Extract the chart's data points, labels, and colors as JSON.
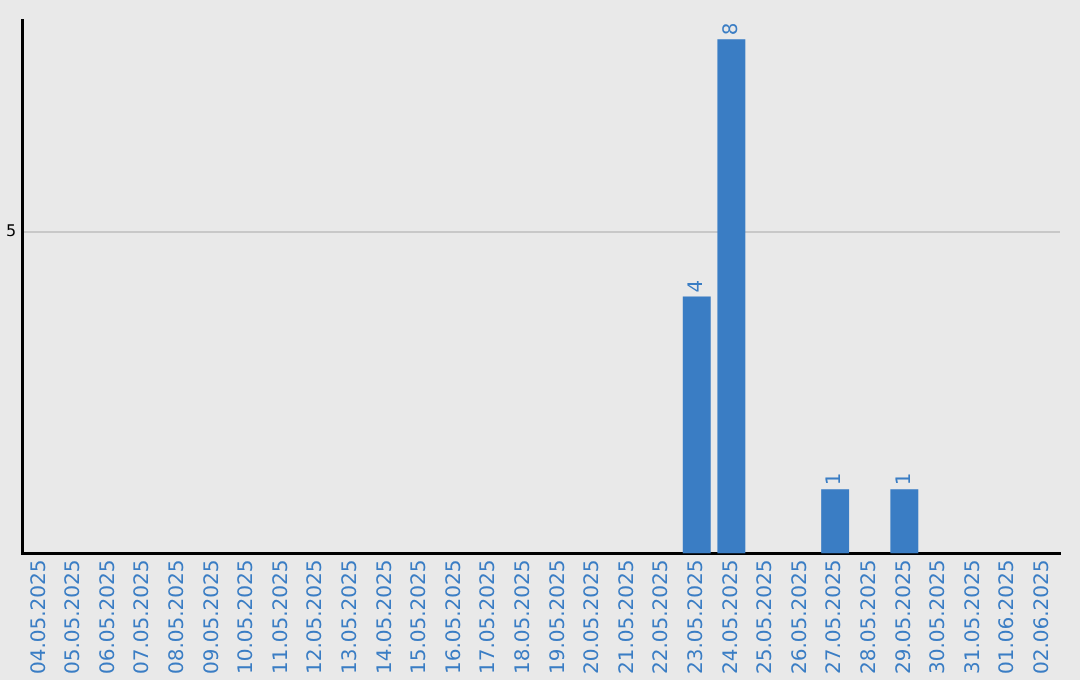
{
  "chart_data": {
    "type": "bar",
    "categories": [
      "04.05.2025",
      "05.05.2025",
      "06.05.2025",
      "07.05.2025",
      "08.05.2025",
      "09.05.2025",
      "10.05.2025",
      "11.05.2025",
      "12.05.2025",
      "13.05.2025",
      "14.05.2025",
      "15.05.2025",
      "16.05.2025",
      "17.05.2025",
      "18.05.2025",
      "19.05.2025",
      "20.05.2025",
      "21.05.2025",
      "22.05.2025",
      "23.05.2025",
      "24.05.2025",
      "25.05.2025",
      "26.05.2025",
      "27.05.2025",
      "28.05.2025",
      "29.05.2025",
      "30.05.2025",
      "31.05.2025",
      "01.06.2025",
      "02.06.2025"
    ],
    "values": [
      null,
      null,
      null,
      null,
      null,
      null,
      null,
      null,
      null,
      null,
      null,
      null,
      null,
      null,
      null,
      null,
      null,
      null,
      null,
      4,
      8,
      null,
      null,
      1,
      null,
      1,
      null,
      null,
      null,
      null
    ],
    "data_labels": true,
    "color": "#3a7dc4",
    "ylim": [
      0,
      8.3
    ],
    "yticks": [
      5
    ],
    "grid": "y"
  }
}
